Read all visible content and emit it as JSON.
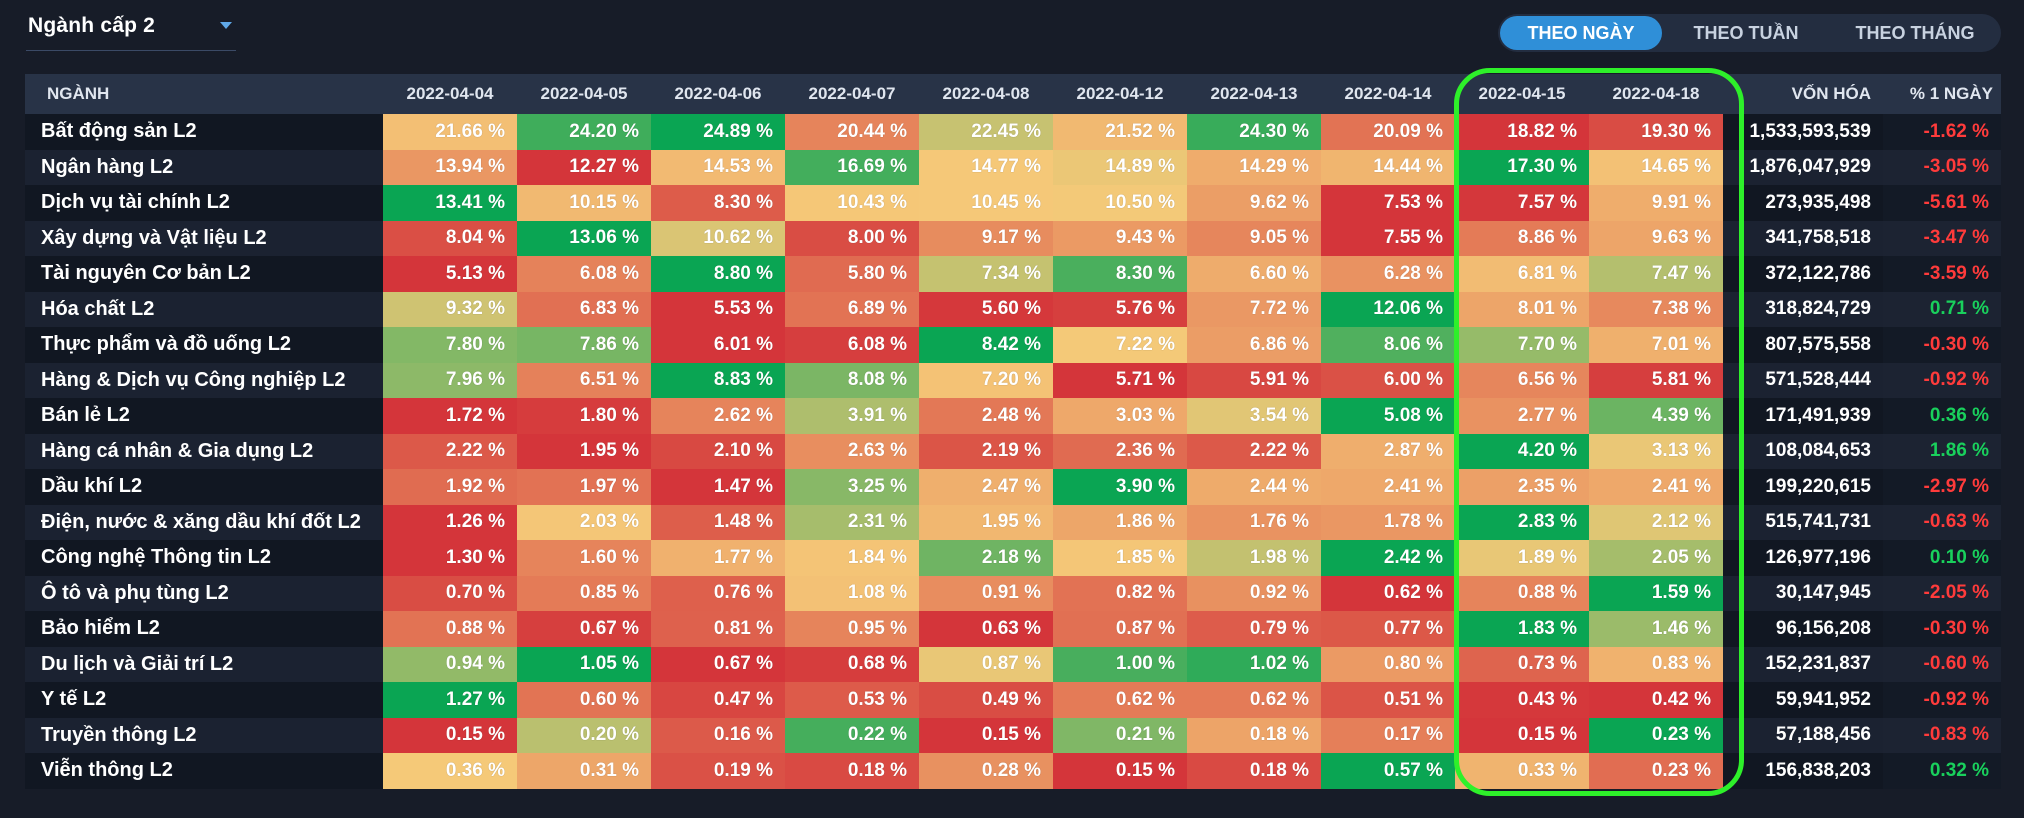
{
  "filter": {
    "label": "Ngành cấp 2"
  },
  "tabs": [
    {
      "label": "THEO NGÀY",
      "active": true
    },
    {
      "label": "THEO TUẦN",
      "active": false
    },
    {
      "label": "THEO THÁNG",
      "active": false
    }
  ],
  "table": {
    "header_sector": "NGÀNH",
    "dates": [
      "2022-04-04",
      "2022-04-05",
      "2022-04-06",
      "2022-04-07",
      "2022-04-08",
      "2022-04-12",
      "2022-04-13",
      "2022-04-14",
      "2022-04-15",
      "2022-04-18"
    ],
    "header_cap": "VỐN HÓA",
    "header_change": "% 1 NGÀY",
    "rows": [
      {
        "sector": "Bất động sản L2",
        "values": [
          "21.66 %",
          "24.20 %",
          "24.89 %",
          "20.44 %",
          "22.45 %",
          "21.52 %",
          "24.30 %",
          "20.09 %",
          "18.82 %",
          "19.30 %"
        ],
        "cap": "1,533,593,539",
        "change": "-1.62 %",
        "change_sign": "neg"
      },
      {
        "sector": "Ngân hàng L2",
        "values": [
          "13.94 %",
          "12.27 %",
          "14.53 %",
          "16.69 %",
          "14.77 %",
          "14.89 %",
          "14.29 %",
          "14.44 %",
          "17.30 %",
          "14.65 %"
        ],
        "cap": "1,876,047,929",
        "change": "-3.05 %",
        "change_sign": "neg"
      },
      {
        "sector": "Dịch vụ tài chính L2",
        "values": [
          "13.41 %",
          "10.15 %",
          "8.30 %",
          "10.43 %",
          "10.45 %",
          "10.50 %",
          "9.62 %",
          "7.53 %",
          "7.57 %",
          "9.91 %"
        ],
        "cap": "273,935,498",
        "change": "-5.61 %",
        "change_sign": "neg"
      },
      {
        "sector": "Xây dựng và Vật liệu L2",
        "values": [
          "8.04 %",
          "13.06 %",
          "10.62 %",
          "8.00 %",
          "9.17 %",
          "9.43 %",
          "9.05 %",
          "7.55 %",
          "8.86 %",
          "9.63 %"
        ],
        "cap": "341,758,518",
        "change": "-3.47 %",
        "change_sign": "neg"
      },
      {
        "sector": "Tài nguyên Cơ bản L2",
        "values": [
          "5.13 %",
          "6.08 %",
          "8.80 %",
          "5.80 %",
          "7.34 %",
          "8.30 %",
          "6.60 %",
          "6.28 %",
          "6.81 %",
          "7.47 %"
        ],
        "cap": "372,122,786",
        "change": "-3.59 %",
        "change_sign": "neg"
      },
      {
        "sector": "Hóa chất L2",
        "values": [
          "9.32 %",
          "6.83 %",
          "5.53 %",
          "6.89 %",
          "5.60 %",
          "5.76 %",
          "7.72 %",
          "12.06 %",
          "8.01 %",
          "7.38 %"
        ],
        "cap": "318,824,729",
        "change": "0.71 %",
        "change_sign": "pos"
      },
      {
        "sector": "Thực phẩm và đồ uống L2",
        "values": [
          "7.80 %",
          "7.86 %",
          "6.01 %",
          "6.08 %",
          "8.42 %",
          "7.22 %",
          "6.86 %",
          "8.06 %",
          "7.70 %",
          "7.01 %"
        ],
        "cap": "807,575,558",
        "change": "-0.30 %",
        "change_sign": "neg"
      },
      {
        "sector": "Hàng & Dịch vụ Công nghiệp L2",
        "values": [
          "7.96 %",
          "6.51 %",
          "8.83 %",
          "8.08 %",
          "7.20 %",
          "5.71 %",
          "5.91 %",
          "6.00 %",
          "6.56 %",
          "5.81 %"
        ],
        "cap": "571,528,444",
        "change": "-0.92 %",
        "change_sign": "neg"
      },
      {
        "sector": "Bán lẻ L2",
        "values": [
          "1.72 %",
          "1.80 %",
          "2.62 %",
          "3.91 %",
          "2.48 %",
          "3.03 %",
          "3.54 %",
          "5.08 %",
          "2.77 %",
          "4.39 %"
        ],
        "cap": "171,491,939",
        "change": "0.36 %",
        "change_sign": "pos"
      },
      {
        "sector": "Hàng cá nhân & Gia dụng L2",
        "values": [
          "2.22 %",
          "1.95 %",
          "2.10 %",
          "2.63 %",
          "2.19 %",
          "2.36 %",
          "2.22 %",
          "2.87 %",
          "4.20 %",
          "3.13 %"
        ],
        "cap": "108,084,653",
        "change": "1.86 %",
        "change_sign": "pos"
      },
      {
        "sector": "Dầu khí L2",
        "values": [
          "1.92 %",
          "1.97 %",
          "1.47 %",
          "3.25 %",
          "2.47 %",
          "3.90 %",
          "2.44 %",
          "2.41 %",
          "2.35 %",
          "2.41 %"
        ],
        "cap": "199,220,615",
        "change": "-2.97 %",
        "change_sign": "neg"
      },
      {
        "sector": "Điện, nước & xăng dầu khí đốt L2",
        "values": [
          "1.26 %",
          "2.03 %",
          "1.48 %",
          "2.31 %",
          "1.95 %",
          "1.86 %",
          "1.76 %",
          "1.78 %",
          "2.83 %",
          "2.12 %"
        ],
        "cap": "515,741,731",
        "change": "-0.63 %",
        "change_sign": "neg"
      },
      {
        "sector": "Công nghệ Thông tin L2",
        "values": [
          "1.30 %",
          "1.60 %",
          "1.77 %",
          "1.84 %",
          "2.18 %",
          "1.85 %",
          "1.98 %",
          "2.42 %",
          "1.89 %",
          "2.05 %"
        ],
        "cap": "126,977,196",
        "change": "0.10 %",
        "change_sign": "pos"
      },
      {
        "sector": "Ô tô và phụ tùng L2",
        "values": [
          "0.70 %",
          "0.85 %",
          "0.76 %",
          "1.08 %",
          "0.91 %",
          "0.82 %",
          "0.92 %",
          "0.62 %",
          "0.88 %",
          "1.59 %"
        ],
        "cap": "30,147,945",
        "change": "-2.05 %",
        "change_sign": "neg"
      },
      {
        "sector": "Bảo hiểm L2",
        "values": [
          "0.88 %",
          "0.67 %",
          "0.81 %",
          "0.95 %",
          "0.63 %",
          "0.87 %",
          "0.79 %",
          "0.77 %",
          "1.83 %",
          "1.46 %"
        ],
        "cap": "96,156,208",
        "change": "-0.30 %",
        "change_sign": "neg"
      },
      {
        "sector": "Du lịch và Giải trí L2",
        "values": [
          "0.94 %",
          "1.05 %",
          "0.67 %",
          "0.68 %",
          "0.87 %",
          "1.00 %",
          "1.02 %",
          "0.80 %",
          "0.73 %",
          "0.83 %"
        ],
        "cap": "152,231,837",
        "change": "-0.60 %",
        "change_sign": "neg"
      },
      {
        "sector": "Y tế L2",
        "values": [
          "1.27 %",
          "0.60 %",
          "0.47 %",
          "0.53 %",
          "0.49 %",
          "0.62 %",
          "0.62 %",
          "0.51 %",
          "0.43 %",
          "0.42 %"
        ],
        "cap": "59,941,952",
        "change": "-0.92 %",
        "change_sign": "neg"
      },
      {
        "sector": "Truyền thông L2",
        "values": [
          "0.15 %",
          "0.20 %",
          "0.16 %",
          "0.22 %",
          "0.15 %",
          "0.21 %",
          "0.18 %",
          "0.17 %",
          "0.15 %",
          "0.23 %"
        ],
        "cap": "57,188,456",
        "change": "-0.83 %",
        "change_sign": "neg"
      },
      {
        "sector": "Viễn thông L2",
        "values": [
          "0.36 %",
          "0.31 %",
          "0.19 %",
          "0.18 %",
          "0.28 %",
          "0.15 %",
          "0.18 %",
          "0.57 %",
          "0.33 %",
          "0.23 %"
        ],
        "cap": "156,838,203",
        "change": "0.32 %",
        "change_sign": "pos"
      }
    ]
  },
  "colors": {
    "heat_low": "#d4353a",
    "heat_mid": "#f5c978",
    "heat_high": "#0aa553",
    "highlight_border": "#2ef02a",
    "positive": "#19d05c",
    "negative": "#ff3b3b",
    "tab_active": "#2f8fd8"
  }
}
